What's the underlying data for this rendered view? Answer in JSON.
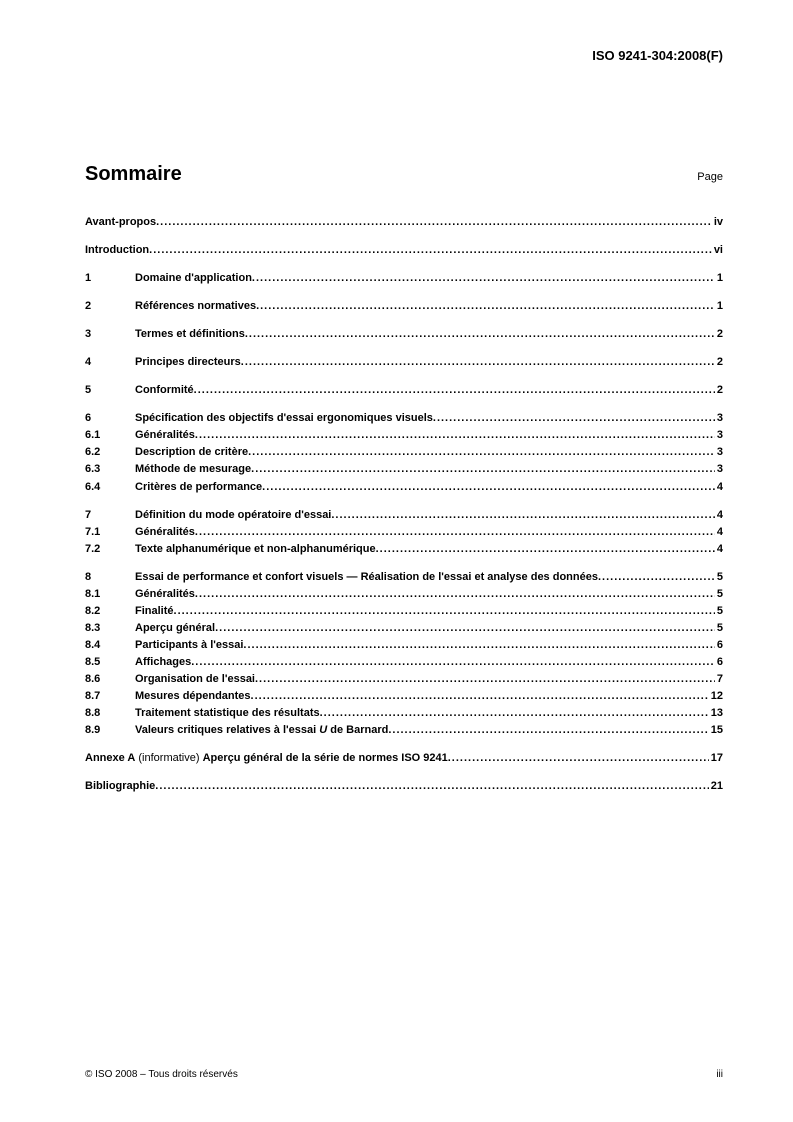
{
  "header": {
    "doc_id": "ISO 9241-304:2008(F)"
  },
  "title": "Sommaire",
  "page_label": "Page",
  "toc": [
    {
      "group": [
        {
          "num": "",
          "text": "Avant-propos",
          "page": "iv"
        }
      ]
    },
    {
      "group": [
        {
          "num": "",
          "text": "Introduction",
          "page": "vi"
        }
      ]
    },
    {
      "group": [
        {
          "num": "1",
          "text": "Domaine d'application",
          "page": "1"
        }
      ]
    },
    {
      "group": [
        {
          "num": "2",
          "text": "Références normatives",
          "page": "1"
        }
      ]
    },
    {
      "group": [
        {
          "num": "3",
          "text": "Termes et définitions",
          "page": "2"
        }
      ]
    },
    {
      "group": [
        {
          "num": "4",
          "text": "Principes directeurs",
          "page": "2"
        }
      ]
    },
    {
      "group": [
        {
          "num": "5",
          "text": "Conformité",
          "page": "2"
        }
      ]
    },
    {
      "group": [
        {
          "num": "6",
          "text": "Spécification des objectifs d'essai ergonomiques visuels",
          "page": "3"
        },
        {
          "num": "6.1",
          "text": "Généralités",
          "page": "3"
        },
        {
          "num": "6.2",
          "text": "Description de critère",
          "page": "3"
        },
        {
          "num": "6.3",
          "text": "Méthode de mesurage",
          "page": "3"
        },
        {
          "num": "6.4",
          "text": "Critères de performance",
          "page": "4"
        }
      ]
    },
    {
      "group": [
        {
          "num": "7",
          "text": "Définition du mode opératoire d'essai",
          "page": "4"
        },
        {
          "num": "7.1",
          "text": "Généralités",
          "page": "4"
        },
        {
          "num": "7.2",
          "text": "Texte alphanumérique et non-alphanumérique",
          "page": "4"
        }
      ]
    },
    {
      "group": [
        {
          "num": "8",
          "text": "Essai de performance et confort visuels — Réalisation de l'essai et analyse des données",
          "page": "5"
        },
        {
          "num": "8.1",
          "text": "Généralités",
          "page": "5"
        },
        {
          "num": "8.2",
          "text": "Finalité",
          "page": "5"
        },
        {
          "num": "8.3",
          "text": "Aperçu général",
          "page": "5"
        },
        {
          "num": "8.4",
          "text": "Participants à l'essai",
          "page": "6"
        },
        {
          "num": "8.5",
          "text": "Affichages",
          "page": "6"
        },
        {
          "num": "8.6",
          "text": "Organisation de l'essai",
          "page": "7"
        },
        {
          "num": "8.7",
          "text": "Mesures dépendantes",
          "page": "12"
        },
        {
          "num": "8.8",
          "text": "Traitement statistique des résultats",
          "page": "13"
        },
        {
          "num": "8.9",
          "text_html": "Valeurs critiques relatives à l'essai <span class='italic'>U</span> de Barnard",
          "page": "15"
        }
      ]
    },
    {
      "group": [
        {
          "num": "",
          "text_html": "<b>Annexe A</b> (informative)  <b>Aperçu général de la série de normes ISO 9241</b>",
          "normal": true,
          "page": "17"
        }
      ]
    },
    {
      "group": [
        {
          "num": "",
          "text": "Bibliographie",
          "page": "21"
        }
      ]
    }
  ],
  "footer": {
    "copyright": "© ISO 2008 – Tous droits réservés",
    "page_num": "iii"
  }
}
